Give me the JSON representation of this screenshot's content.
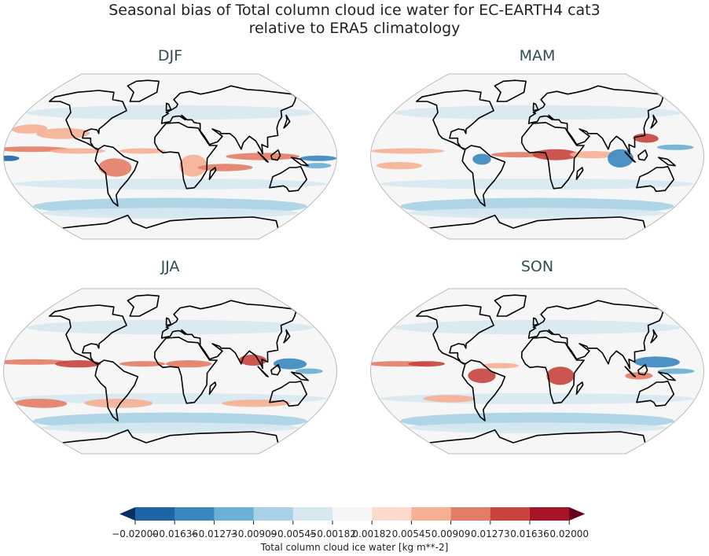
{
  "figure": {
    "title_line1": "Seasonal bias of Total column cloud ice water for EC-EARTH4 cat3",
    "title_line2": "relative to ERA5 climatology"
  },
  "panels": [
    {
      "label": "DJF"
    },
    {
      "label": "MAM"
    },
    {
      "label": "JJA"
    },
    {
      "label": "SON"
    }
  ],
  "colorbar": {
    "label": "Total column cloud ice water [kg m**-2]",
    "ticks": [
      "−0.02000",
      "−0.01636",
      "−0.01273",
      "−0.00909",
      "−0.00545",
      "−0.00182",
      "0.00182",
      "0.00545",
      "0.00909",
      "0.01273",
      "0.01636",
      "0.02000"
    ],
    "under_color": "#053061",
    "over_color": "#67001f",
    "colors": [
      "#2064a8",
      "#3a87c0",
      "#6aafd4",
      "#a9d1e6",
      "#d8e8f1",
      "#f6f6f6",
      "#fcdacb",
      "#f5b093",
      "#e37d66",
      "#c9443d",
      "#a51429"
    ]
  }
}
